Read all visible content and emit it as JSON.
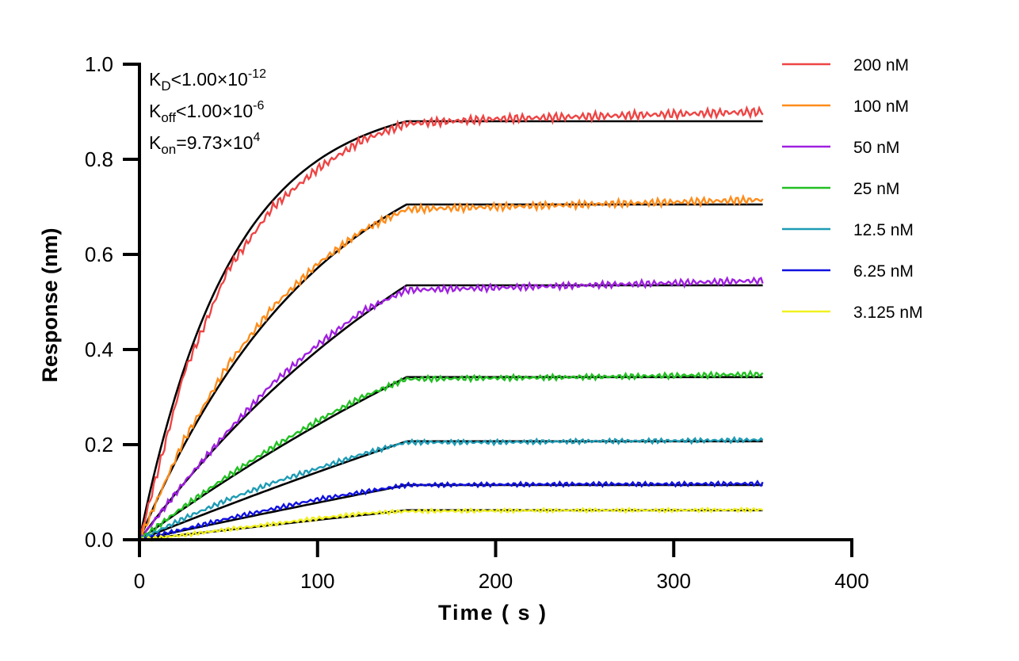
{
  "chart_data": {
    "type": "line",
    "xlabel": "Time ( s )",
    "ylabel": "Response (nm)",
    "xlim": [
      0,
      400
    ],
    "ylim": [
      0,
      1.0
    ],
    "xticks": [
      "0",
      "100",
      "200",
      "300",
      "400"
    ],
    "yticks": [
      "0.0",
      "0.2",
      "0.4",
      "0.6",
      "0.8",
      "1.0"
    ],
    "grid": false,
    "legend_position": "right",
    "association_end_s": 150,
    "dissociation_end_s": 350,
    "annotations": [
      {
        "main": "K",
        "sub": "D",
        "rel": "<1.00×10",
        "sup": "-12"
      },
      {
        "main": "K",
        "sub": "off",
        "rel": "<1.00×10",
        "sup": "-6"
      },
      {
        "main": "K",
        "sub": "on",
        "rel": "=9.73×10",
        "sup": "4"
      }
    ],
    "kon": 97300,
    "fit_color": "#000000",
    "time_points": [
      0,
      25,
      50,
      75,
      100,
      125,
      150,
      200,
      250,
      300,
      350
    ],
    "series": [
      {
        "name": "200 nM",
        "conc_nM": 200,
        "color": "#EE4444",
        "fit_plateau": 0.88,
        "values": [
          0,
          0.35,
          0.57,
          0.7,
          0.78,
          0.84,
          0.875,
          0.885,
          0.89,
          0.895,
          0.9
        ]
      },
      {
        "name": "100 nM",
        "conc_nM": 100,
        "color": "#FF8C1A",
        "fit_plateau": 0.705,
        "values": [
          0,
          0.21,
          0.37,
          0.49,
          0.58,
          0.65,
          0.695,
          0.7,
          0.705,
          0.71,
          0.715
        ]
      },
      {
        "name": "50 nM",
        "conc_nM": 50,
        "color": "#A020E0",
        "fit_plateau": 0.535,
        "values": [
          0,
          0.12,
          0.23,
          0.33,
          0.41,
          0.48,
          0.525,
          0.53,
          0.535,
          0.54,
          0.545
        ]
      },
      {
        "name": "25 nM",
        "conc_nM": 25,
        "color": "#22C022",
        "fit_plateau": 0.342,
        "values": [
          0,
          0.07,
          0.135,
          0.195,
          0.25,
          0.3,
          0.338,
          0.34,
          0.342,
          0.345,
          0.348
        ]
      },
      {
        "name": "12.5 nM",
        "conc_nM": 12.5,
        "color": "#1E9BB4",
        "fit_plateau": 0.207,
        "values": [
          0,
          0.045,
          0.085,
          0.12,
          0.15,
          0.18,
          0.205,
          0.205,
          0.207,
          0.208,
          0.21
        ]
      },
      {
        "name": "6.25 nM",
        "conc_nM": 6.25,
        "color": "#1010E0",
        "fit_plateau": 0.115,
        "values": [
          0,
          0.022,
          0.045,
          0.065,
          0.085,
          0.1,
          0.115,
          0.116,
          0.117,
          0.117,
          0.118
        ]
      },
      {
        "name": "3.125 nM",
        "conc_nM": 3.125,
        "color": "#F0F020",
        "fit_plateau": 0.062,
        "values": [
          0,
          0.01,
          0.022,
          0.033,
          0.045,
          0.055,
          0.06,
          0.061,
          0.062,
          0.062,
          0.063
        ]
      }
    ]
  }
}
